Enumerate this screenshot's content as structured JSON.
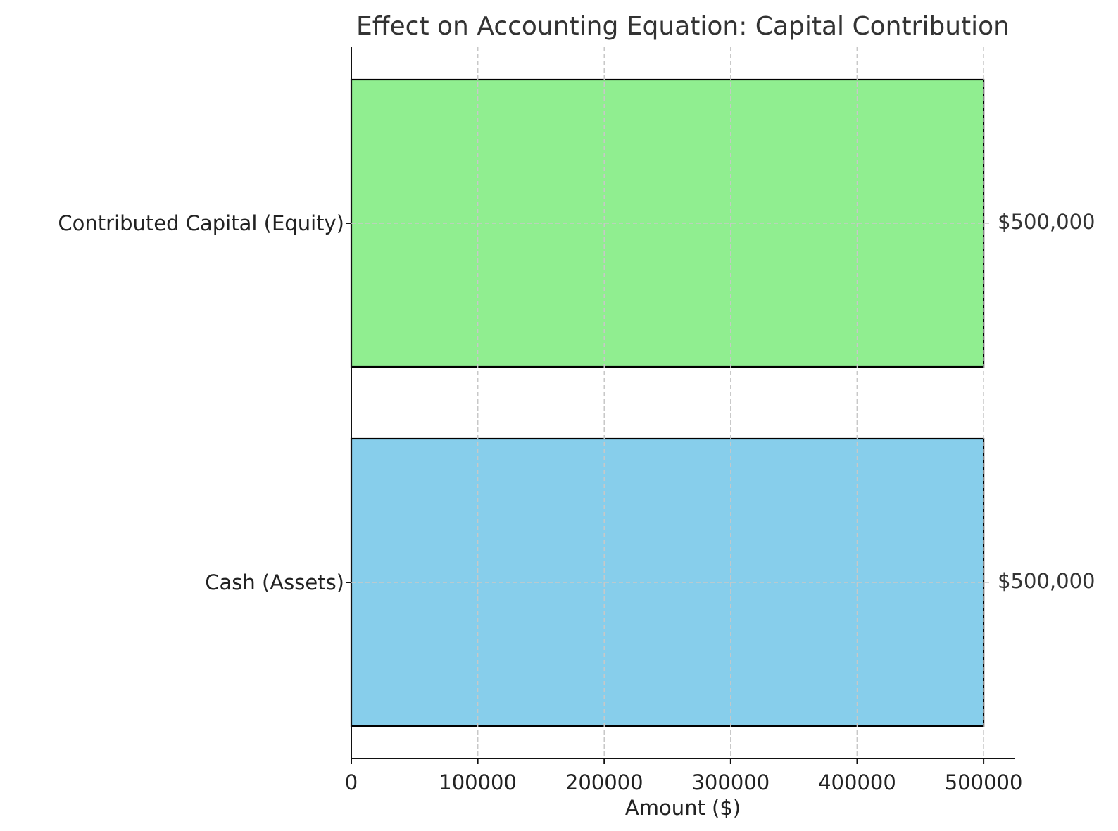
{
  "chart_data": {
    "type": "bar",
    "orientation": "horizontal",
    "title": "Effect on Accounting Equation: Capital Contribution",
    "xlabel": "Amount ($)",
    "ylabel": "",
    "categories": [
      "Cash (Assets)",
      "Contributed Capital (Equity)"
    ],
    "values": [
      500000,
      500000
    ],
    "data_labels": [
      "$500,000",
      "$500,000"
    ],
    "colors": [
      "#87ceeb",
      "#90ee90"
    ],
    "edge_color": "#000000",
    "xlim": [
      0,
      525000
    ],
    "xticks": [
      0,
      100000,
      200000,
      300000,
      400000,
      500000
    ],
    "xtick_labels": [
      "0",
      "100000",
      "200000",
      "300000",
      "400000",
      "500000"
    ],
    "grid": true,
    "grid_style": "dashed"
  }
}
